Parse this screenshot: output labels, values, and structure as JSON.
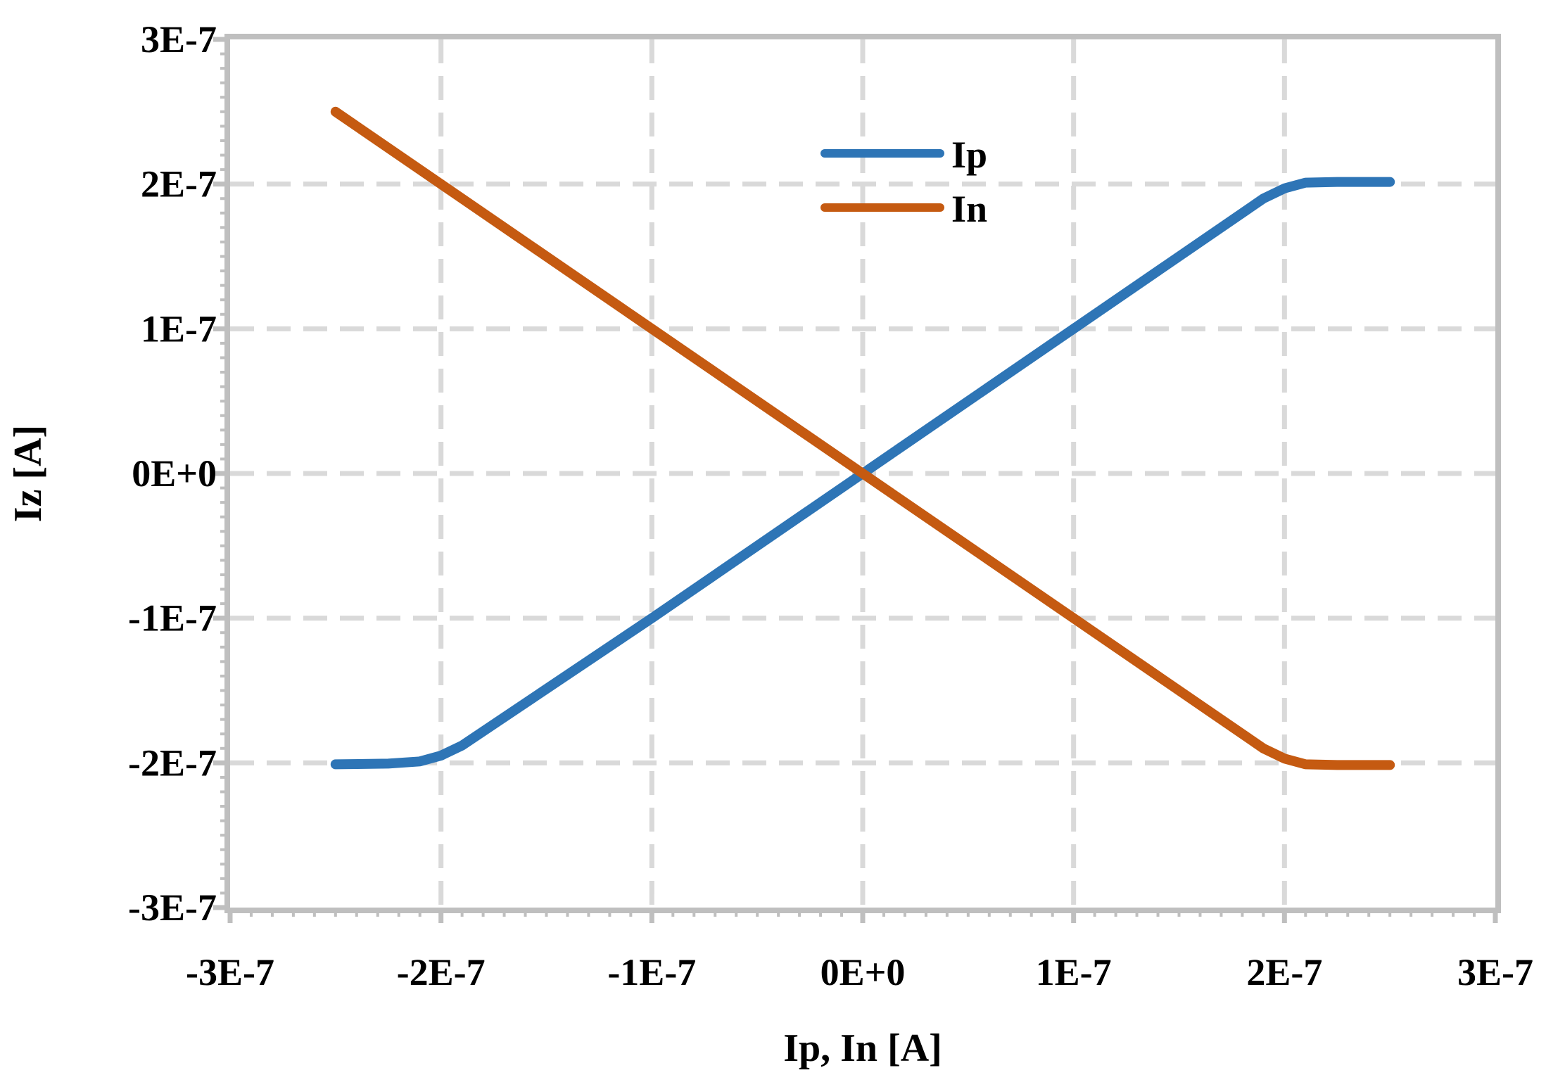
{
  "chart_data": {
    "type": "line",
    "title": "",
    "xlabel": "Ip, In [A]",
    "ylabel": "Iz [A]",
    "xlim": [
      -3e-07,
      3e-07
    ],
    "ylim": [
      -3e-07,
      3e-07
    ],
    "x_ticks": [
      -3e-07,
      -2e-07,
      -1e-07,
      0,
      1e-07,
      2e-07,
      3e-07
    ],
    "x_tick_labels": [
      "-3E-7",
      "-2E-7",
      "-1E-7",
      "0E+0",
      "1E-7",
      "2E-7",
      "3E-7"
    ],
    "y_ticks": [
      3e-07,
      2e-07,
      1e-07,
      0,
      -1e-07,
      -2e-07,
      -3e-07
    ],
    "y_tick_labels": [
      "3E-7",
      "2E-7",
      "1E-7",
      "0E+0",
      "-1E-7",
      "-2E-7",
      "-3E-7"
    ],
    "grid": true,
    "legend_position": "top-center",
    "series": [
      {
        "name": "Ip",
        "color": "#2E75B6",
        "x": [
          -2.5e-07,
          -2.25e-07,
          -2.1e-07,
          -2e-07,
          -1.9e-07,
          -1e-07,
          0,
          1e-07,
          1.9e-07,
          2e-07,
          2.1e-07,
          2.25e-07,
          2.5e-07
        ],
        "y": [
          -2.01e-07,
          -2.005e-07,
          -1.99e-07,
          -1.95e-07,
          -1.88e-07,
          -1e-07,
          0,
          1e-07,
          1.9e-07,
          1.97e-07,
          2.01e-07,
          2.015e-07,
          2.015e-07
        ]
      },
      {
        "name": "In",
        "color": "#C55A11",
        "x": [
          -2.5e-07,
          -2e-07,
          -1e-07,
          0,
          1e-07,
          1.9e-07,
          2e-07,
          2.1e-07,
          2.25e-07,
          2.5e-07
        ],
        "y": [
          2.5e-07,
          2e-07,
          1e-07,
          0,
          -1e-07,
          -1.9e-07,
          -1.97e-07,
          -2.01e-07,
          -2.015e-07,
          -2.015e-07
        ]
      }
    ]
  }
}
